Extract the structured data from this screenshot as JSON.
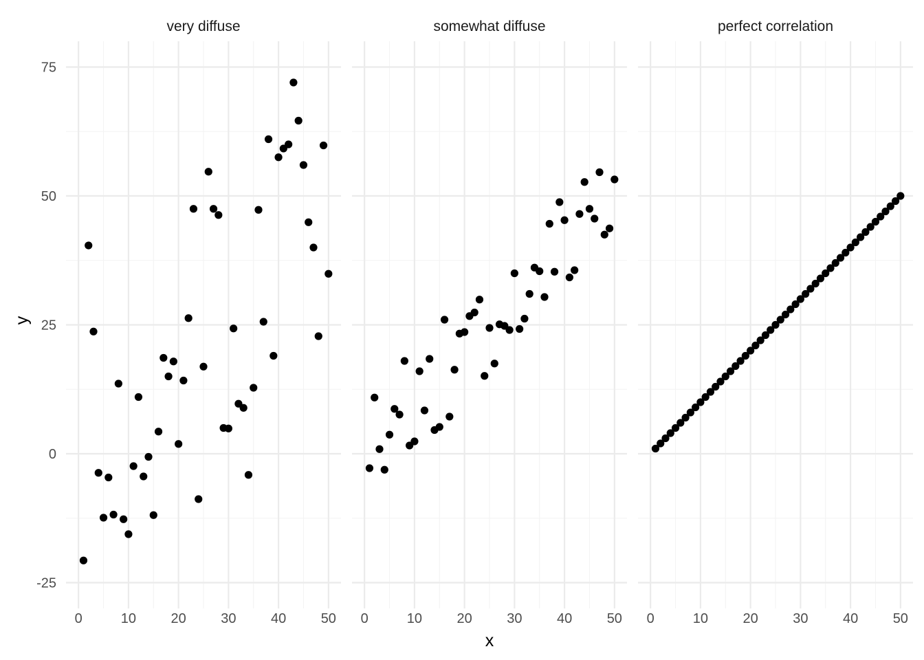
{
  "chart_data": {
    "type": "scatter",
    "xlabel": "x",
    "ylabel": "y",
    "xlim": [
      0,
      50
    ],
    "ylim": [
      -25,
      75
    ],
    "x_ticks": [
      0,
      10,
      20,
      30,
      40,
      50
    ],
    "y_ticks": [
      -25,
      0,
      25,
      50,
      75
    ],
    "grid": true,
    "point_color": "#000000",
    "panels": [
      {
        "title": "very diffuse",
        "x": [
          1,
          2,
          3,
          4,
          5,
          6,
          7,
          8,
          9,
          10,
          11,
          12,
          13,
          14,
          15,
          16,
          17,
          18,
          19,
          20,
          21,
          22,
          23,
          24,
          25,
          26,
          27,
          28,
          29,
          30,
          31,
          32,
          33,
          34,
          35,
          36,
          37,
          38,
          39,
          40,
          41,
          42,
          43,
          44,
          45,
          46,
          47,
          48,
          49,
          50
        ],
        "y": [
          -20.7,
          40.4,
          23.7,
          -3.7,
          -12.4,
          -4.6,
          -11.8,
          13.6,
          -12.7,
          -15.6,
          -2.4,
          11.0,
          -4.4,
          -0.6,
          -11.9,
          4.3,
          18.6,
          15.0,
          17.9,
          1.9,
          14.2,
          26.3,
          47.5,
          -8.8,
          16.9,
          54.7,
          47.5,
          46.3,
          5.0,
          4.9,
          24.3,
          9.7,
          8.9,
          -4.1,
          12.8,
          47.3,
          25.6,
          61.0,
          19.0,
          57.5,
          59.2,
          60.0,
          72.0,
          64.6,
          56.0,
          44.9,
          40.0,
          22.8,
          59.8,
          34.9
        ]
      },
      {
        "title": "somewhat diffuse",
        "x": [
          1,
          2,
          3,
          4,
          5,
          6,
          7,
          8,
          9,
          10,
          11,
          12,
          13,
          14,
          15,
          16,
          17,
          18,
          19,
          20,
          21,
          22,
          23,
          24,
          25,
          26,
          27,
          28,
          29,
          30,
          31,
          32,
          33,
          34,
          35,
          36,
          37,
          38,
          39,
          40,
          41,
          42,
          43,
          44,
          45,
          46,
          47,
          48,
          49,
          50
        ],
        "y": [
          -2.8,
          10.9,
          0.9,
          -3.1,
          3.7,
          8.7,
          7.6,
          18.0,
          1.6,
          2.4,
          16.0,
          8.4,
          18.4,
          4.6,
          5.2,
          26.0,
          7.2,
          16.3,
          23.3,
          23.6,
          26.7,
          27.4,
          29.9,
          15.1,
          24.4,
          17.5,
          25.1,
          24.8,
          24.0,
          35.0,
          24.2,
          26.2,
          31.0,
          36.1,
          35.4,
          30.4,
          44.6,
          35.3,
          48.8,
          45.3,
          34.2,
          35.6,
          46.5,
          52.7,
          47.5,
          45.6,
          54.6,
          42.5,
          43.7,
          53.2
        ]
      },
      {
        "title": "perfect correlation",
        "x": [
          1,
          2,
          3,
          4,
          5,
          6,
          7,
          8,
          9,
          10,
          11,
          12,
          13,
          14,
          15,
          16,
          17,
          18,
          19,
          20,
          21,
          22,
          23,
          24,
          25,
          26,
          27,
          28,
          29,
          30,
          31,
          32,
          33,
          34,
          35,
          36,
          37,
          38,
          39,
          40,
          41,
          42,
          43,
          44,
          45,
          46,
          47,
          48,
          49,
          50
        ],
        "y": [
          1,
          2,
          3,
          4,
          5,
          6,
          7,
          8,
          9,
          10,
          11,
          12,
          13,
          14,
          15,
          16,
          17,
          18,
          19,
          20,
          21,
          22,
          23,
          24,
          25,
          26,
          27,
          28,
          29,
          30,
          31,
          32,
          33,
          34,
          35,
          36,
          37,
          38,
          39,
          40,
          41,
          42,
          43,
          44,
          45,
          46,
          47,
          48,
          49,
          50
        ]
      }
    ]
  }
}
